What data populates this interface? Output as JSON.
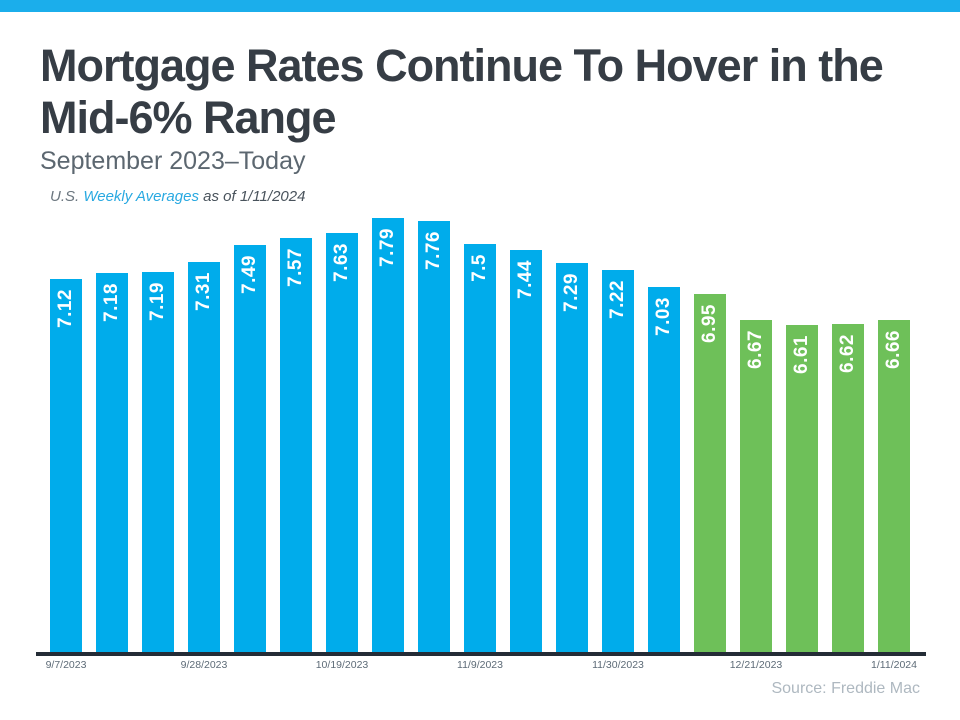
{
  "header": {
    "title_lines": [
      "Mortgage Rates Continue To Hover in the",
      "Mid-6% Range"
    ],
    "subtitle": "September 2023–Today",
    "note": {
      "prefix": "U.S. ",
      "highlight": "Weekly Averages",
      "suffix": " as of 1/11/2024"
    }
  },
  "footer": {
    "source": "Source: Freddie Mac"
  },
  "colors": {
    "top_strip": "#1baeeb",
    "bar_blue": "#00aceb",
    "bar_green": "#6ec059",
    "axis_line": "#242c36",
    "value_label": "#ffffff",
    "note_link_blue": "#29a9e1"
  },
  "chart_data": {
    "type": "bar",
    "title": "Mortgage Rates Continue To Hover in the Mid-6% Range",
    "subtitle": "September 2023–Today",
    "annotation": "U.S. Weekly Averages as of 1/11/2024",
    "source": "Source: Freddie Mac",
    "values": [
      7.12,
      7.18,
      7.19,
      7.31,
      7.49,
      7.57,
      7.63,
      7.79,
      7.76,
      7.5,
      7.44,
      7.29,
      7.22,
      7.03,
      6.95,
      6.67,
      6.61,
      6.62,
      6.66
    ],
    "green_start_index": 14,
    "x_tick_labels": [
      "9/7/2023",
      "9/28/2023",
      "10/19/2023",
      "11/9/2023",
      "11/30/2023",
      "12/21/2023",
      "1/11/2024"
    ],
    "x_tick_bar_indices": [
      0,
      3,
      6,
      9,
      12,
      15,
      18
    ],
    "ylim": [
      3.0,
      7.9
    ],
    "xlabel": "",
    "ylabel": "",
    "grid": false,
    "legend": false,
    "value_labels_inside_bars": true
  }
}
